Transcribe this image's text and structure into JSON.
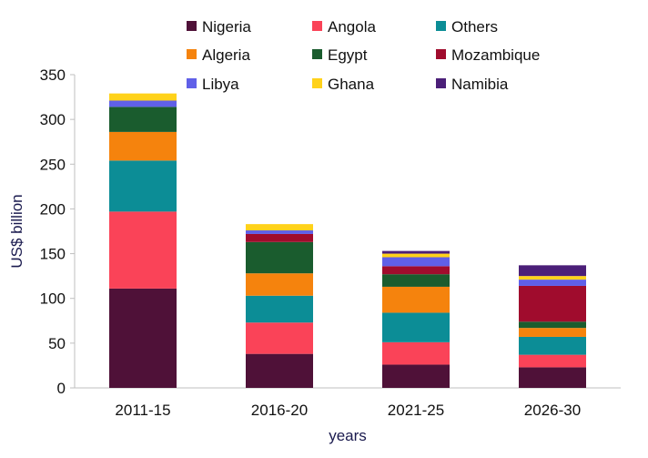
{
  "chart_data": {
    "type": "bar",
    "stacked": true,
    "title": "",
    "xlabel": "years",
    "ylabel": "US$ billion",
    "ylim": [
      0,
      350
    ],
    "yticks": [
      0,
      50,
      100,
      150,
      200,
      250,
      300,
      350
    ],
    "grid": false,
    "legend_position": "top",
    "categories": [
      "2011-15",
      "2016-20",
      "2021-25",
      "2026-30"
    ],
    "series": [
      {
        "name": "Nigeria",
        "color": "#4f1138",
        "values": [
          111,
          38,
          26,
          23
        ]
      },
      {
        "name": "Angola",
        "color": "#fa4358",
        "values": [
          86,
          35,
          25,
          14
        ]
      },
      {
        "name": "Others",
        "color": "#0c8d96",
        "values": [
          57,
          30,
          33,
          20
        ]
      },
      {
        "name": "Algeria",
        "color": "#f5830d",
        "values": [
          32,
          25,
          29,
          10
        ]
      },
      {
        "name": "Egypt",
        "color": "#1a5c2e",
        "values": [
          28,
          35,
          14,
          7
        ]
      },
      {
        "name": "Mozambique",
        "color": "#a00c2d",
        "values": [
          0,
          9,
          9,
          40
        ]
      },
      {
        "name": "Libya",
        "color": "#6060e8",
        "values": [
          7,
          4,
          10,
          7
        ]
      },
      {
        "name": "Ghana",
        "color": "#ffd21a",
        "values": [
          8,
          7,
          4,
          4
        ]
      },
      {
        "name": "Namibia",
        "color": "#4b1f78",
        "values": [
          0,
          0,
          3,
          12
        ]
      }
    ]
  }
}
